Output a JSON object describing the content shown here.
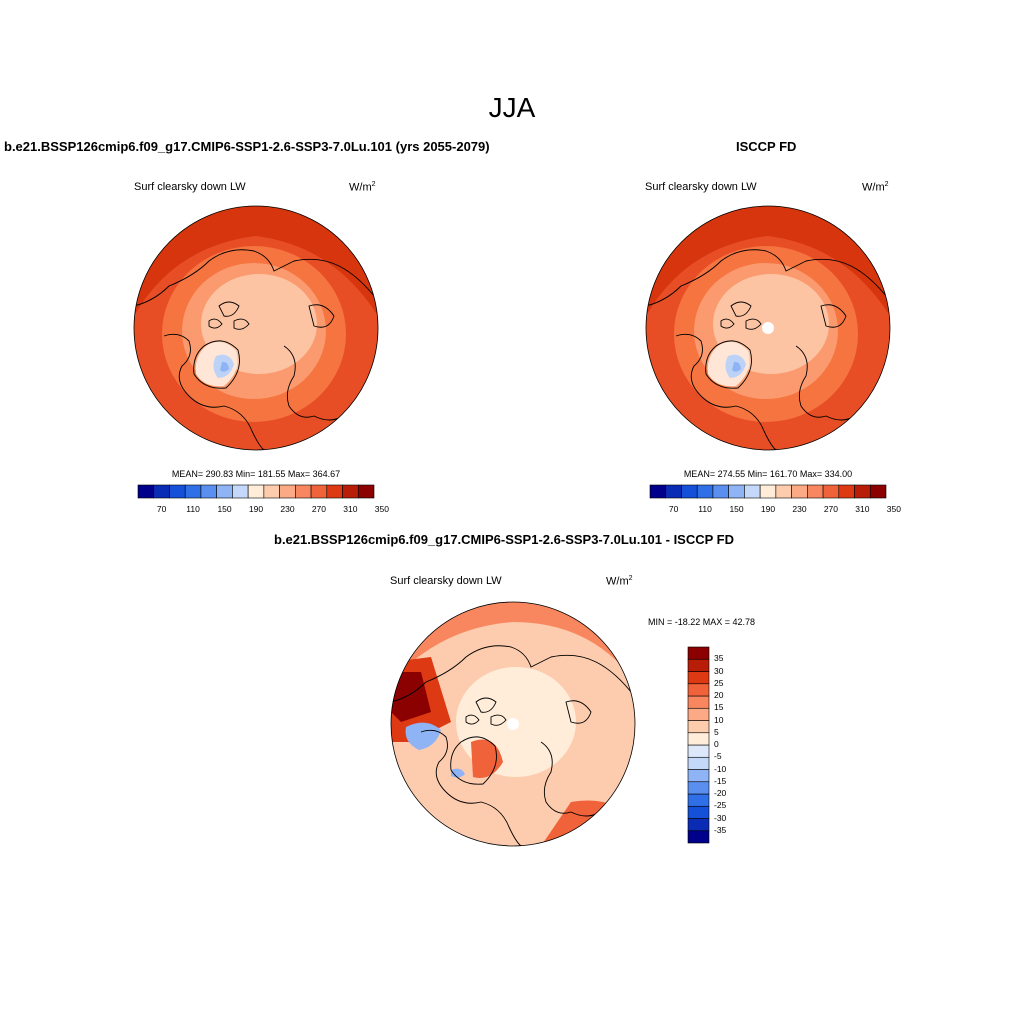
{
  "season": "JJA",
  "panels": [
    {
      "title": "b.e21.BSSP126cmip6.f09_g17.CMIP6-SSP1-2.6-SSP3-7.0Lu.101 (yrs 2055-2079)",
      "variable": "Surf clearsky down LW",
      "units_base": "W/m",
      "units_exp": "2",
      "stats": "MEAN= 290.83  Min= 181.55  Max= 364.67",
      "pole_gap": false
    },
    {
      "title": "ISCCP FD",
      "variable": "Surf clearsky down LW",
      "units_base": "W/m",
      "units_exp": "2",
      "stats": "MEAN= 274.55  Min= 161.70  Max= 334.00",
      "pole_gap": true
    },
    {
      "title": "b.e21.BSSP126cmip6.f09_g17.CMIP6-SSP1-2.6-SSP3-7.0Lu.101 - ISCCP FD",
      "variable": "Surf clearsky down LW",
      "units_base": "W/m",
      "units_exp": "2",
      "stats": "MIN = -18.22 MAX =  42.78",
      "pole_gap": true
    }
  ],
  "colorbar_abs": {
    "colors": [
      "#00008b",
      "#0a2bb3",
      "#1450d8",
      "#2f6fe8",
      "#5a8ff0",
      "#8fb4f5",
      "#c4d8fa",
      "#ffedd9",
      "#fdccad",
      "#fca985",
      "#f8875f",
      "#f0623a",
      "#dd3a14",
      "#b81d08",
      "#8b0000"
    ],
    "labels": [
      "70",
      "110",
      "150",
      "190",
      "230",
      "270",
      "310",
      "350"
    ]
  },
  "colorbar_diff": {
    "colors": [
      "#00008b",
      "#0a2bb3",
      "#1450d8",
      "#2f6fe8",
      "#5a8ff0",
      "#8fb4f5",
      "#c4d8fa",
      "#dde9fb",
      "#ffedd9",
      "#fdccad",
      "#fca985",
      "#f8875f",
      "#f0623a",
      "#dd3a14",
      "#b81d08",
      "#8b0000"
    ],
    "labels": [
      "35",
      "30",
      "25",
      "20",
      "15",
      "10",
      "5",
      "0",
      "-5",
      "-10",
      "-15",
      "-20",
      "-25",
      "-30",
      "-35"
    ]
  }
}
